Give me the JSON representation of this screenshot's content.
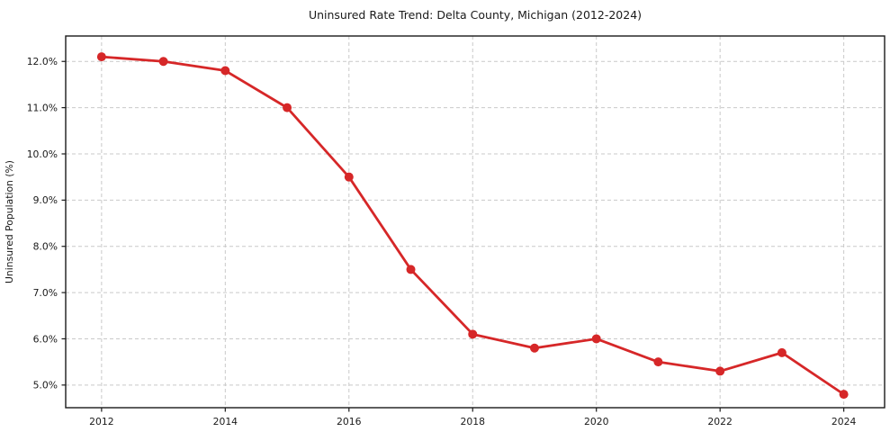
{
  "chart_data": {
    "type": "line",
    "title": "Uninsured Rate Trend: Delta County, Michigan (2012-2024)",
    "xlabel": "",
    "ylabel": "Uninsured Population (%)",
    "x": [
      2012,
      2013,
      2014,
      2015,
      2016,
      2017,
      2018,
      2019,
      2020,
      2021,
      2022,
      2023,
      2024
    ],
    "values": [
      12.1,
      12.0,
      11.8,
      11.0,
      9.5,
      7.5,
      6.1,
      5.8,
      6.0,
      5.5,
      5.3,
      5.7,
      4.8
    ],
    "xticks": [
      2012,
      2014,
      2016,
      2018,
      2020,
      2022,
      2024
    ],
    "ytick_values": [
      5.0,
      6.0,
      7.0,
      8.0,
      9.0,
      10.0,
      11.0,
      12.0
    ],
    "ytick_labels": [
      "5.0%",
      "6.0%",
      "7.0%",
      "8.0%",
      "9.0%",
      "10.0%",
      "11.0%",
      "12.0%"
    ],
    "xlim": [
      2011.42,
      2024.66
    ],
    "ylim": [
      4.51,
      12.55
    ],
    "grid": true,
    "legend_position": "none",
    "line_color": "#d62728",
    "marker": "o",
    "grid_color": "#c9c9c9",
    "spine_color": "#1a1a1a",
    "background_color": "#ffffff"
  }
}
